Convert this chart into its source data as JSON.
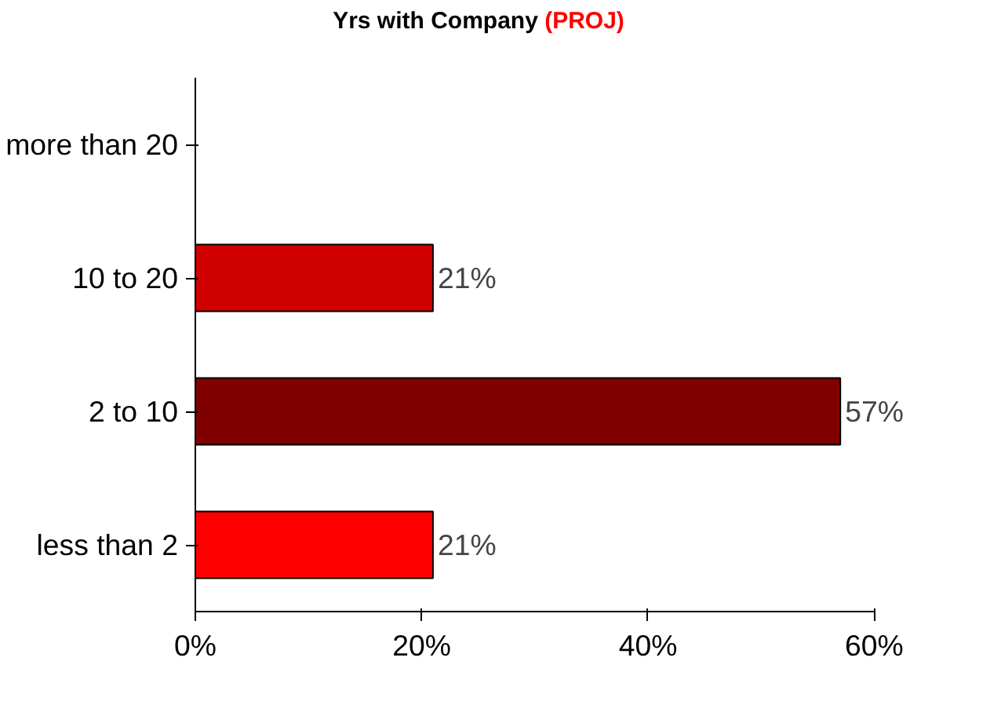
{
  "chart_data": {
    "type": "bar",
    "orientation": "horizontal",
    "title": "Yrs with Company",
    "subtitle": "(PROJ)",
    "categories": [
      "more than 20",
      "10 to 20",
      "2 to 10",
      "less than 2"
    ],
    "values": [
      null,
      21,
      57,
      21
    ],
    "colors": [
      "#ff0000",
      "#d00000",
      "#800000",
      "#ff0000"
    ],
    "value_labels": [
      null,
      "21%",
      "57%",
      "21%"
    ],
    "xlim": [
      0,
      60
    ],
    "xticks": [
      {
        "value": 0,
        "label": "0%"
      },
      {
        "value": 20,
        "label": "20%"
      },
      {
        "value": 40,
        "label": "40%"
      },
      {
        "value": 60,
        "label": "60%"
      }
    ],
    "grid": false
  }
}
